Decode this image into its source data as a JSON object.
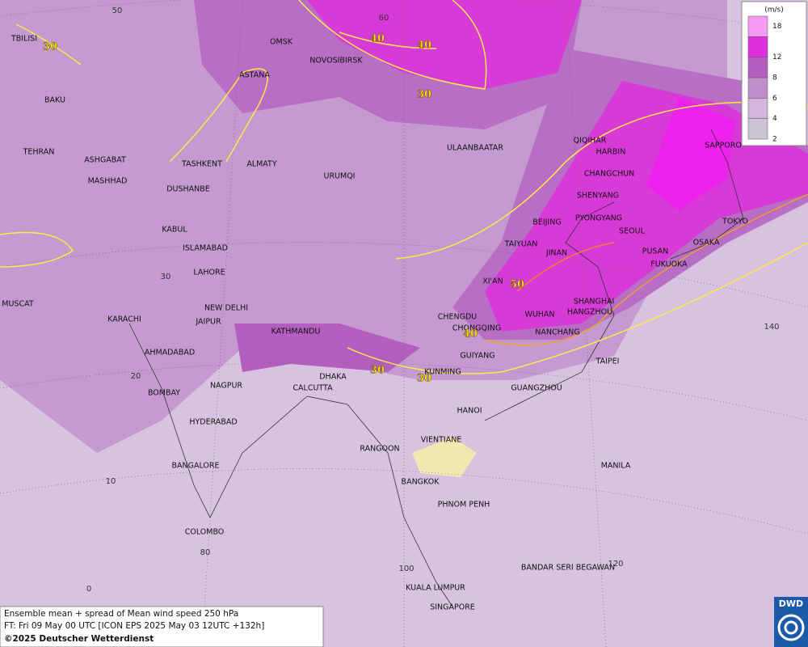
{
  "caption": {
    "line1": "Ensemble mean + spread of Mean wind speed 250 hPa",
    "line2": "FT: Fri 09 May 00 UTC [ICON EPS 2025 May 03 12UTC +132h]",
    "line3": "©2025 Deutscher Wetterdienst"
  },
  "logo": "DWD",
  "legend": {
    "unit": "(m/s)",
    "levels": [
      2,
      4,
      6,
      8,
      12,
      18
    ],
    "colors": [
      "#ccc4d4",
      "#d2b4dc",
      "#bf8ecb",
      "#b45ebf",
      "#de2ede",
      "#f59af2"
    ]
  },
  "cities": [
    "OMSK",
    "NOVOSIBIRSK",
    "ASTANA",
    "TBILISI",
    "BAKU",
    "TEHRAN",
    "ASHGABAT",
    "MASHHAD",
    "TASHKENT",
    "ALMATY",
    "DUSHANBE",
    "URUMQI",
    "ULAANBAATAR",
    "QIQIHAR",
    "HARBIN",
    "CHANGCHUN",
    "SHENYANG",
    "BEIJING",
    "PYONGYANG",
    "SEOUL",
    "TAIYUAN",
    "JINAN",
    "PUSAN",
    "FUKUOKA",
    "OSAKA",
    "TOKYO",
    "SAPPORO",
    "KABUL",
    "ISLAMABAD",
    "LAHORE",
    "NEW DELHI",
    "JAIPUR",
    "MUSCAT",
    "KARACHI",
    "AHMADABAD",
    "BOMBAY",
    "NAGPUR",
    "HYDERABAD",
    "BANGALORE",
    "COLOMBO",
    "KATHMANDU",
    "DHAKA",
    "CALCUTTA",
    "XI'AN",
    "CHENGDU",
    "CHONGQING",
    "WUHAN",
    "SHANGHAI",
    "HANGZHOU",
    "NANCHANG",
    "GUIYANG",
    "KUNMING",
    "TAIPEI",
    "GUANGZHOU",
    "HANOI",
    "VIENTIANE",
    "RANGOON",
    "BANGKOK",
    "PHNOM PENH",
    "MANILA",
    "BANDAR SERI BEGAWAN",
    "KUALA LUMPUR",
    "SINGAPORE"
  ],
  "contour_labels": [
    30,
    40,
    40,
    30,
    50,
    40,
    30,
    30
  ],
  "grid_labels": [
    50,
    60,
    30,
    20,
    10,
    0,
    80,
    100,
    120,
    140
  ]
}
